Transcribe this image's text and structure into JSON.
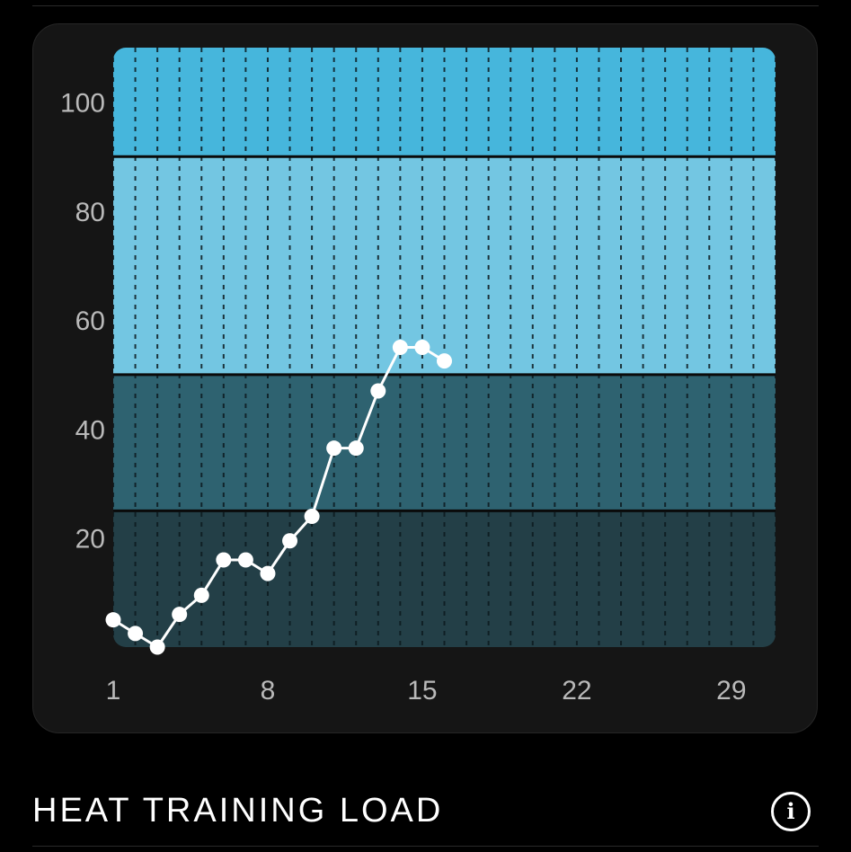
{
  "chart_data": {
    "type": "line",
    "title": "",
    "xlabel": "",
    "ylabel": "",
    "xlim": [
      1,
      31
    ],
    "ylim": [
      0,
      110
    ],
    "x_ticks": [
      1,
      8,
      15,
      22,
      29
    ],
    "y_ticks": [
      20,
      40,
      60,
      80,
      100
    ],
    "zones": [
      {
        "from": 0,
        "to": 25,
        "color": "#233f47"
      },
      {
        "from": 25,
        "to": 50,
        "color": "#2e6270"
      },
      {
        "from": 50,
        "to": 90,
        "color": "#73c6e2"
      },
      {
        "from": 90,
        "to": 110,
        "color": "#46b6dc"
      }
    ],
    "grid_vertical": true,
    "series": [
      {
        "color": "#ffffff",
        "x": [
          1,
          2,
          3,
          4,
          5,
          6,
          7,
          8,
          9,
          10,
          11,
          12,
          13,
          14,
          15,
          16
        ],
        "y": [
          5,
          2.5,
          0,
          6,
          9.5,
          16,
          16,
          13.5,
          19.5,
          24,
          36.5,
          36.5,
          47,
          55,
          55,
          52.5
        ]
      }
    ]
  },
  "footer": {
    "title": "HEAT TRAINING LOAD",
    "info_icon": "info-icon",
    "info_glyph": "i"
  }
}
